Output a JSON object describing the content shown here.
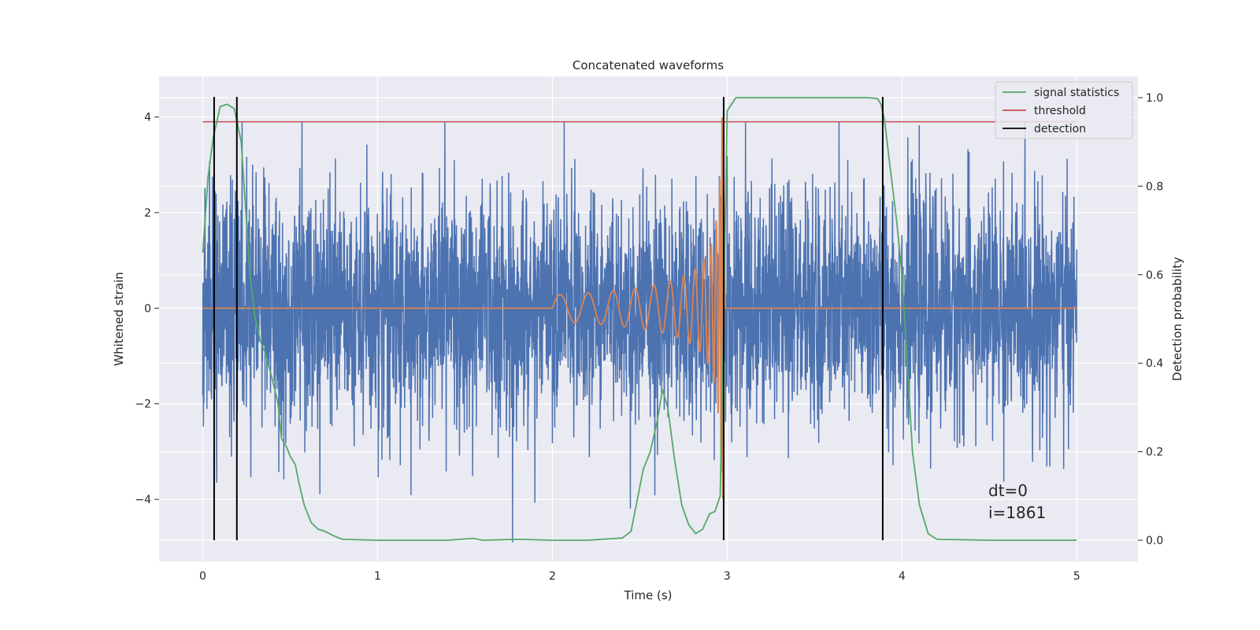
{
  "chart_data": {
    "type": "line",
    "title": "Concatenated waveforms",
    "xlabel": "Time (s)",
    "ylabel": "Whitened strain",
    "y2label": "Detection probability",
    "xlim": [
      -0.25,
      5.35
    ],
    "ylim": [
      -5.3,
      4.85
    ],
    "y2lim": [
      -0.048,
      1.048
    ],
    "x_ticks": [
      0,
      1,
      2,
      3,
      4,
      5
    ],
    "y_ticks": [
      -4,
      -2,
      0,
      2,
      4
    ],
    "y2_ticks": [
      0.0,
      0.2,
      0.4,
      0.6,
      0.8,
      1.0
    ],
    "x_tick_labels": [
      "0",
      "1",
      "2",
      "3",
      "4",
      "5"
    ],
    "y_tick_labels": [
      "−4",
      "−2",
      "0",
      "2",
      "4"
    ],
    "y2_tick_labels": [
      "0.0",
      "0.2",
      "0.4",
      "0.6",
      "0.8",
      "1.0"
    ],
    "grid": true,
    "legend_position": "top-right",
    "series": [
      {
        "name": "",
        "axis": "left",
        "color": "#4c72b0",
        "kind": "noise",
        "x_range": [
          0,
          5
        ],
        "approx_std": 1.2,
        "approx_range": [
          -4.9,
          3.9
        ]
      },
      {
        "name": "",
        "axis": "left",
        "color": "#dd8452",
        "kind": "chirp",
        "x_range": [
          0,
          5
        ],
        "chirp_start": 2.0,
        "chirp_merger": 2.98,
        "zero_outside_chirp": true,
        "peak_amplitude": 4.0
      },
      {
        "name": "signal statistics",
        "axis": "right",
        "color": "#55a868",
        "x": [
          0,
          0.03,
          0.06,
          0.1,
          0.14,
          0.18,
          0.22,
          0.25,
          0.27,
          0.3,
          0.33,
          0.36,
          0.4,
          0.43,
          0.45,
          0.48,
          0.5,
          0.53,
          0.55,
          0.58,
          0.62,
          0.66,
          0.7,
          0.75,
          0.8,
          1.0,
          1.4,
          1.5,
          1.55,
          1.6,
          1.8,
          2.0,
          2.2,
          2.4,
          2.45,
          2.48,
          2.52,
          2.56,
          2.6,
          2.63,
          2.66,
          2.7,
          2.74,
          2.78,
          2.82,
          2.86,
          2.9,
          2.93,
          2.96,
          2.98,
          3.0,
          3.05,
          3.1,
          3.5,
          3.8,
          3.86,
          3.88,
          3.9,
          3.93,
          3.97,
          4.0,
          4.03,
          4.06,
          4.1,
          4.15,
          4.2,
          4.5,
          5.0
        ],
        "y": [
          0.65,
          0.82,
          0.91,
          0.98,
          0.985,
          0.975,
          0.9,
          0.72,
          0.6,
          0.5,
          0.45,
          0.42,
          0.36,
          0.31,
          0.23,
          0.21,
          0.19,
          0.17,
          0.13,
          0.08,
          0.04,
          0.025,
          0.02,
          0.01,
          0.002,
          0.0,
          0.0,
          0.003,
          0.004,
          0.0,
          0.002,
          0.0,
          0.0,
          0.005,
          0.02,
          0.08,
          0.16,
          0.2,
          0.27,
          0.34,
          0.3,
          0.18,
          0.08,
          0.035,
          0.015,
          0.025,
          0.06,
          0.065,
          0.1,
          0.5,
          0.97,
          1.0,
          1.0,
          1.0,
          1.0,
          0.998,
          0.985,
          0.95,
          0.85,
          0.72,
          0.6,
          0.4,
          0.2,
          0.08,
          0.015,
          0.002,
          0.0,
          0.0
        ]
      },
      {
        "name": "threshold",
        "axis": "left",
        "color": "#c44e52",
        "x": [
          0,
          5
        ],
        "y": [
          3.9,
          3.9
        ]
      },
      {
        "name": "detection",
        "axis": "right",
        "color": "#000000",
        "kind": "vlines",
        "x": [
          0.065,
          0.195,
          2.98,
          3.89
        ]
      }
    ],
    "annotations": [
      "dt=0",
      "i=1861"
    ]
  }
}
